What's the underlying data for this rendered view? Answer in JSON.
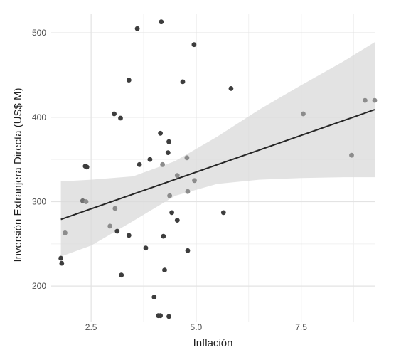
{
  "chart_data": {
    "type": "scatter",
    "title": "",
    "xlabel": "Inflación",
    "ylabel": "Inversión Extranjera Directa (US$ M)",
    "xlim": [
      1.55,
      9.25
    ],
    "ylim": [
      158,
      522
    ],
    "x_ticks": [
      2.5,
      5.0,
      7.5
    ],
    "x_tick_labels": [
      "2.5",
      "5.0",
      "7.5"
    ],
    "y_ticks": [
      200,
      300,
      400,
      500
    ],
    "y_tick_labels": [
      "200",
      "300",
      "400",
      "500"
    ],
    "grid": true,
    "legend": "none",
    "colors": {
      "point_dark": "#3d3d3d",
      "point_mid": "#707070",
      "point_light": "#8c8c8c",
      "trend_line": "#262626",
      "confidence_band": "#d9d9d9",
      "grid_major": "#e3e3e3",
      "grid_minor": "#f1f1f1"
    },
    "points": [
      {
        "x": 1.78,
        "y": 233,
        "shade": "dark"
      },
      {
        "x": 1.8,
        "y": 227,
        "shade": "dark"
      },
      {
        "x": 1.88,
        "y": 263,
        "shade": "light"
      },
      {
        "x": 2.3,
        "y": 301,
        "shade": "mid"
      },
      {
        "x": 2.36,
        "y": 342,
        "shade": "dark"
      },
      {
        "x": 2.38,
        "y": 300,
        "shade": "light"
      },
      {
        "x": 2.4,
        "y": 341,
        "shade": "dark"
      },
      {
        "x": 2.95,
        "y": 271,
        "shade": "light"
      },
      {
        "x": 3.05,
        "y": 404,
        "shade": "dark"
      },
      {
        "x": 3.07,
        "y": 292,
        "shade": "light"
      },
      {
        "x": 3.12,
        "y": 265,
        "shade": "dark"
      },
      {
        "x": 3.2,
        "y": 399,
        "shade": "dark"
      },
      {
        "x": 3.22,
        "y": 213,
        "shade": "dark"
      },
      {
        "x": 3.4,
        "y": 444,
        "shade": "dark"
      },
      {
        "x": 3.4,
        "y": 260,
        "shade": "dark"
      },
      {
        "x": 3.6,
        "y": 505,
        "shade": "dark"
      },
      {
        "x": 3.65,
        "y": 344,
        "shade": "dark"
      },
      {
        "x": 3.8,
        "y": 245,
        "shade": "dark"
      },
      {
        "x": 3.9,
        "y": 350,
        "shade": "dark"
      },
      {
        "x": 4.0,
        "y": 187,
        "shade": "dark"
      },
      {
        "x": 4.1,
        "y": 165,
        "shade": "dark"
      },
      {
        "x": 4.15,
        "y": 165,
        "shade": "dark"
      },
      {
        "x": 4.15,
        "y": 381,
        "shade": "dark"
      },
      {
        "x": 4.17,
        "y": 513,
        "shade": "dark"
      },
      {
        "x": 4.2,
        "y": 344,
        "shade": "light"
      },
      {
        "x": 4.22,
        "y": 259,
        "shade": "dark"
      },
      {
        "x": 4.25,
        "y": 219,
        "shade": "dark"
      },
      {
        "x": 4.33,
        "y": 358,
        "shade": "dark"
      },
      {
        "x": 4.35,
        "y": 371,
        "shade": "dark"
      },
      {
        "x": 4.35,
        "y": 164,
        "shade": "dark"
      },
      {
        "x": 4.37,
        "y": 307,
        "shade": "light"
      },
      {
        "x": 4.42,
        "y": 287,
        "shade": "dark"
      },
      {
        "x": 4.55,
        "y": 331,
        "shade": "light"
      },
      {
        "x": 4.55,
        "y": 278,
        "shade": "dark"
      },
      {
        "x": 4.68,
        "y": 442,
        "shade": "dark"
      },
      {
        "x": 4.78,
        "y": 352,
        "shade": "light"
      },
      {
        "x": 4.8,
        "y": 312,
        "shade": "light"
      },
      {
        "x": 4.8,
        "y": 242,
        "shade": "dark"
      },
      {
        "x": 4.95,
        "y": 486,
        "shade": "dark"
      },
      {
        "x": 4.96,
        "y": 325,
        "shade": "light"
      },
      {
        "x": 5.65,
        "y": 287,
        "shade": "dark"
      },
      {
        "x": 5.83,
        "y": 434,
        "shade": "dark"
      },
      {
        "x": 7.55,
        "y": 404,
        "shade": "light"
      },
      {
        "x": 8.7,
        "y": 355,
        "shade": "light"
      },
      {
        "x": 9.02,
        "y": 420,
        "shade": "light"
      },
      {
        "x": 9.25,
        "y": 420,
        "shade": "light"
      }
    ],
    "trend_line": {
      "x": [
        1.78,
        9.25
      ],
      "y": [
        279,
        409
      ]
    },
    "confidence_band": {
      "x": [
        1.78,
        2.5,
        3.5,
        4.5,
        5.5,
        6.5,
        7.5,
        8.5,
        9.25
      ],
      "upper": [
        324,
        326,
        330,
        348,
        377,
        409,
        438,
        466,
        489
      ],
      "lower": [
        235,
        248,
        277,
        307,
        321,
        326,
        328,
        329,
        329
      ]
    }
  }
}
